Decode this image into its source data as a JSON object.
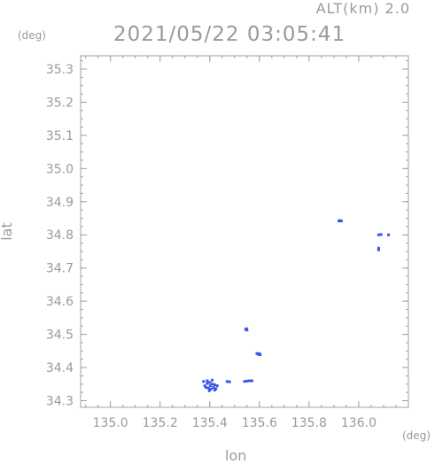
{
  "header": {
    "altitude": "ALT(km) 2.0",
    "timestamp": "2021/05/22 03:05:41"
  },
  "chart_data": {
    "type": "scatter",
    "title": "2021/05/22 03:05:41",
    "subtitle": "ALT(km) 2.0",
    "xlabel": "lon",
    "ylabel": "lat",
    "x_unit": "(deg)",
    "y_unit": "(deg)",
    "xlim": [
      134.88,
      136.2
    ],
    "ylim": [
      34.28,
      35.34
    ],
    "xticks": [
      "135.0",
      "135.2",
      "135.4",
      "135.6",
      "135.8",
      "136.0"
    ],
    "xtick_values": [
      135.0,
      135.2,
      135.4,
      135.6,
      135.8,
      136.0
    ],
    "yticks": [
      "34.3",
      "34.4",
      "34.5",
      "34.6",
      "34.7",
      "34.8",
      "34.9",
      "35.0",
      "35.1",
      "35.2",
      "35.3"
    ],
    "ytick_values": [
      34.3,
      34.4,
      34.5,
      34.6,
      34.7,
      34.8,
      34.9,
      35.0,
      35.1,
      35.2,
      35.3
    ],
    "grid": false,
    "marker_color": "#3a56e6",
    "points": [
      {
        "x": 135.38,
        "y": 34.345
      },
      {
        "x": 135.385,
        "y": 34.34
      },
      {
        "x": 135.39,
        "y": 34.352
      },
      {
        "x": 135.395,
        "y": 34.338
      },
      {
        "x": 135.4,
        "y": 34.355
      },
      {
        "x": 135.402,
        "y": 34.345
      },
      {
        "x": 135.405,
        "y": 34.335
      },
      {
        "x": 135.41,
        "y": 34.35
      },
      {
        "x": 135.415,
        "y": 34.34
      },
      {
        "x": 135.42,
        "y": 34.348
      },
      {
        "x": 135.425,
        "y": 34.336
      },
      {
        "x": 135.43,
        "y": 34.345
      },
      {
        "x": 135.375,
        "y": 34.358
      },
      {
        "x": 135.39,
        "y": 34.36
      },
      {
        "x": 135.41,
        "y": 34.362
      },
      {
        "x": 135.42,
        "y": 34.332
      },
      {
        "x": 135.398,
        "y": 34.33
      },
      {
        "x": 135.47,
        "y": 34.358
      },
      {
        "x": 135.48,
        "y": 34.357
      },
      {
        "x": 135.54,
        "y": 34.358
      },
      {
        "x": 135.55,
        "y": 34.359
      },
      {
        "x": 135.56,
        "y": 34.36
      },
      {
        "x": 135.57,
        "y": 34.36
      },
      {
        "x": 135.545,
        "y": 34.515
      },
      {
        "x": 135.55,
        "y": 34.513
      },
      {
        "x": 135.548,
        "y": 34.517
      },
      {
        "x": 135.59,
        "y": 34.442
      },
      {
        "x": 135.595,
        "y": 34.44
      },
      {
        "x": 135.6,
        "y": 34.442
      },
      {
        "x": 135.603,
        "y": 34.439
      },
      {
        "x": 135.92,
        "y": 34.842
      },
      {
        "x": 135.925,
        "y": 34.843
      },
      {
        "x": 135.93,
        "y": 34.842
      },
      {
        "x": 136.08,
        "y": 34.8
      },
      {
        "x": 136.09,
        "y": 34.801
      },
      {
        "x": 136.12,
        "y": 34.8
      },
      {
        "x": 136.08,
        "y": 34.76
      },
      {
        "x": 136.08,
        "y": 34.755
      }
    ]
  }
}
